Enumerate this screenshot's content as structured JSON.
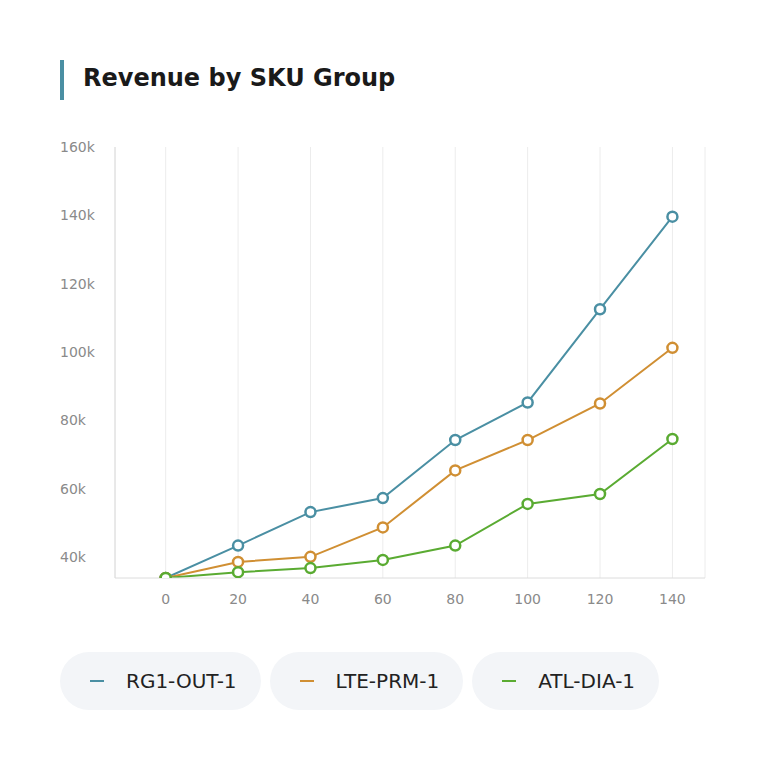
{
  "chart_data": {
    "type": "line",
    "title": "Revenue by SKU Group",
    "x": [
      0,
      20,
      40,
      60,
      80,
      100,
      120,
      140
    ],
    "series": [
      {
        "name": "RG1-OUT-1",
        "color": "#4a8fa3",
        "values": [
          33800,
          43300,
          53100,
          57200,
          74200,
          85200,
          112500,
          139600
        ]
      },
      {
        "name": "LTE-PRM-1",
        "color": "#d08f33",
        "values": [
          33800,
          38500,
          40000,
          48600,
          65300,
          74200,
          84900,
          101200
        ]
      },
      {
        "name": "ATL-DIA-1",
        "color": "#5aab32",
        "values": [
          33800,
          35500,
          36700,
          39100,
          43300,
          55500,
          58400,
          74500
        ]
      }
    ],
    "xlim": [
      -14,
      149
    ],
    "xticks": [
      0,
      20,
      40,
      60,
      80,
      100,
      120,
      140
    ],
    "ylim": [
      33800,
      160000
    ],
    "yticks": [
      {
        "value": 40000,
        "label": "40k"
      },
      {
        "value": 60000,
        "label": "60k"
      },
      {
        "value": 80000,
        "label": "80k"
      },
      {
        "value": 100000,
        "label": "100k"
      },
      {
        "value": 120000,
        "label": "120k"
      },
      {
        "value": 140000,
        "label": "140k"
      },
      {
        "value": 160000,
        "label": "160k"
      }
    ],
    "grid": true,
    "legend": "bottom",
    "marker": "o"
  }
}
